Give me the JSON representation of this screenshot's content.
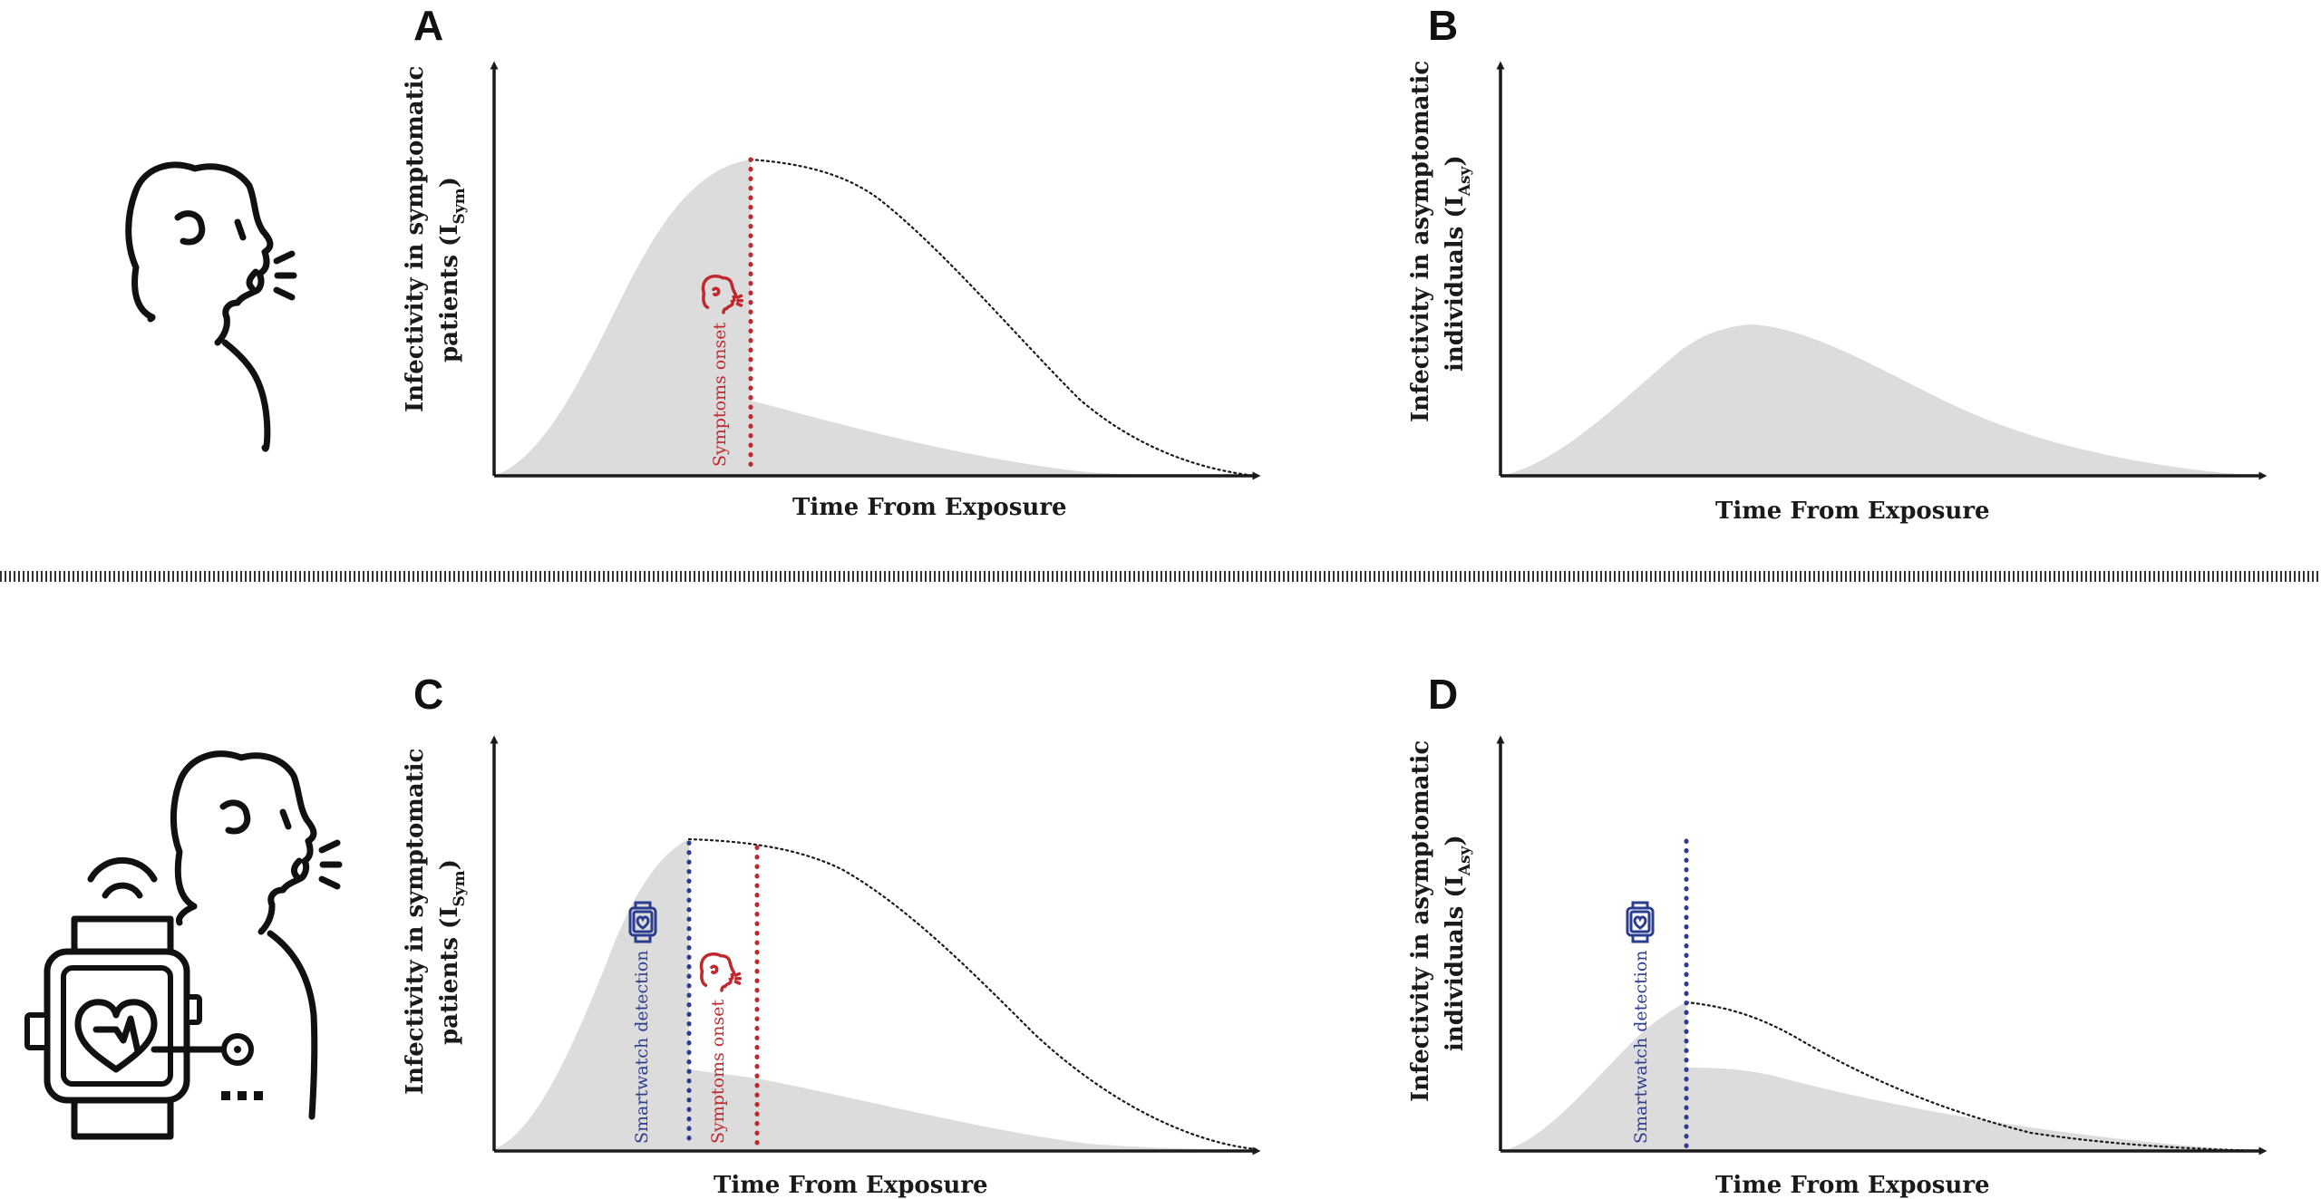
{
  "panels": [
    {
      "letter": "A",
      "y_label_line1": "Infectivity in symptomatic",
      "y_label_line2": "patients (I",
      "y_label_sub": "Sym",
      "y_label_close": ")",
      "x_label": "Time From Exposure"
    },
    {
      "letter": "B",
      "y_label_line1": "Infectivity in asymptomatic",
      "y_label_line2": "individuals (I",
      "y_label_sub": "Asy",
      "y_label_close": ")",
      "x_label": "Time From Exposure"
    },
    {
      "letter": "C",
      "y_label_line1": "Infectivity in symptomatic",
      "y_label_line2": "patients (I",
      "y_label_sub": "Sym",
      "y_label_close": ")",
      "x_label": "Time From Exposure"
    },
    {
      "letter": "D",
      "y_label_line1": "Infectivity in asymptomatic",
      "y_label_line2": "individuals (I",
      "y_label_sub": "Asy",
      "y_label_close": ")",
      "x_label": "Time From Exposure"
    }
  ],
  "markers": {
    "symptoms_onset": "Symptoms onset",
    "smartwatch_detection": "Smartwatch detection"
  },
  "colors": {
    "red": "#c0282d",
    "blue": "#2b3d8f",
    "area": "#dcdcdd",
    "ink": "#1a1a1a"
  },
  "icons": [
    "person-coughing-icon",
    "smartwatch-heart-icon",
    "wifi-signal-icon"
  ]
}
